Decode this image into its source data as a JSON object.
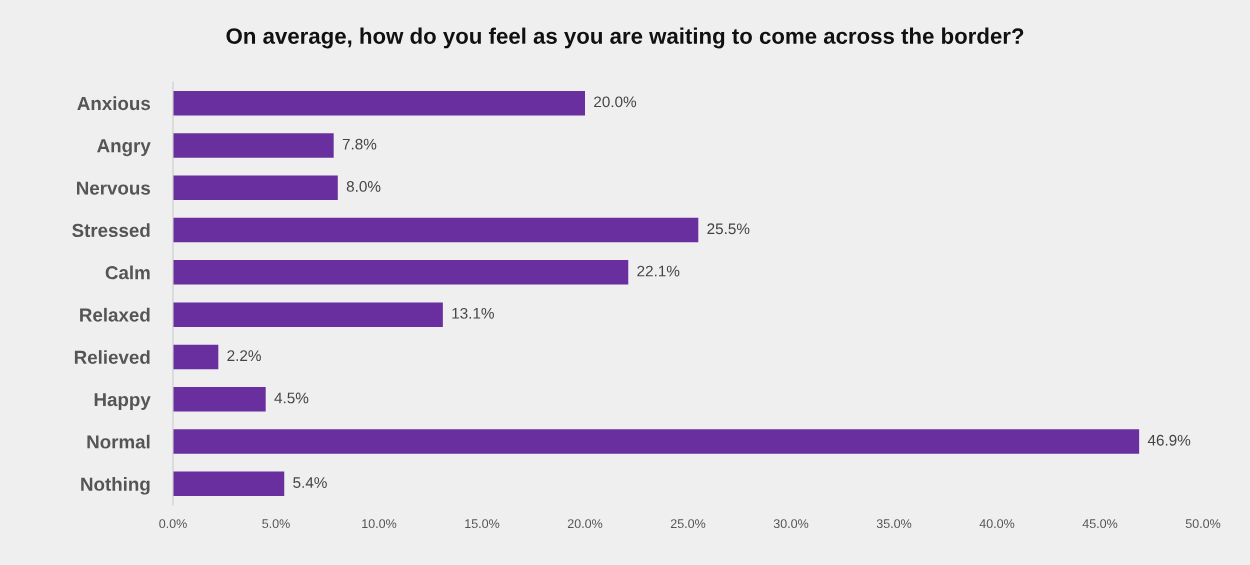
{
  "chart_data": {
    "type": "bar",
    "orientation": "horizontal",
    "title": "On average, how do you feel as you are waiting to come across the border?",
    "categories": [
      "Anxious",
      "Angry",
      "Nervous",
      "Stressed",
      "Calm",
      "Relaxed",
      "Relieved",
      "Happy",
      "Normal",
      "Nothing"
    ],
    "values": [
      20.0,
      7.8,
      8.0,
      25.5,
      22.1,
      13.1,
      2.2,
      4.5,
      46.9,
      5.4
    ],
    "value_labels": [
      "20.0%",
      "7.8%",
      "8.0%",
      "25.5%",
      "22.1%",
      "13.1%",
      "2.2%",
      "4.5%",
      "46.9%",
      "5.4%"
    ],
    "color": "#6a2f9f",
    "xlim": [
      0,
      50
    ],
    "xticks": [
      {
        "value": 0,
        "label": "0.0%"
      },
      {
        "value": 5,
        "label": "5.0%"
      },
      {
        "value": 10,
        "label": "10.0%"
      },
      {
        "value": 15,
        "label": "15.0%"
      },
      {
        "value": 20,
        "label": "20.0%"
      },
      {
        "value": 25,
        "label": "25.0%"
      },
      {
        "value": 30,
        "label": "30.0%"
      },
      {
        "value": 35,
        "label": "35.0%"
      },
      {
        "value": 40,
        "label": "40.0%"
      },
      {
        "value": 45,
        "label": "45.0%"
      },
      {
        "value": 50,
        "label": "50.0%"
      }
    ],
    "grid": false,
    "legend": false
  }
}
